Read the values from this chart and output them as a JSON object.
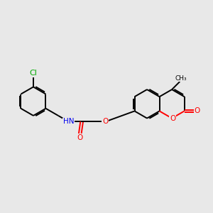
{
  "background_color": "#e8e8e8",
  "bond_color": "#000000",
  "bond_width": 1.4,
  "atom_colors": {
    "Cl": "#00aa00",
    "N": "#0000ee",
    "O": "#ff0000",
    "C": "#000000"
  },
  "figsize": [
    3.0,
    3.0
  ],
  "dpi": 100,
  "xlim": [
    -3.2,
    4.8
  ],
  "ylim": [
    -2.0,
    2.5
  ]
}
